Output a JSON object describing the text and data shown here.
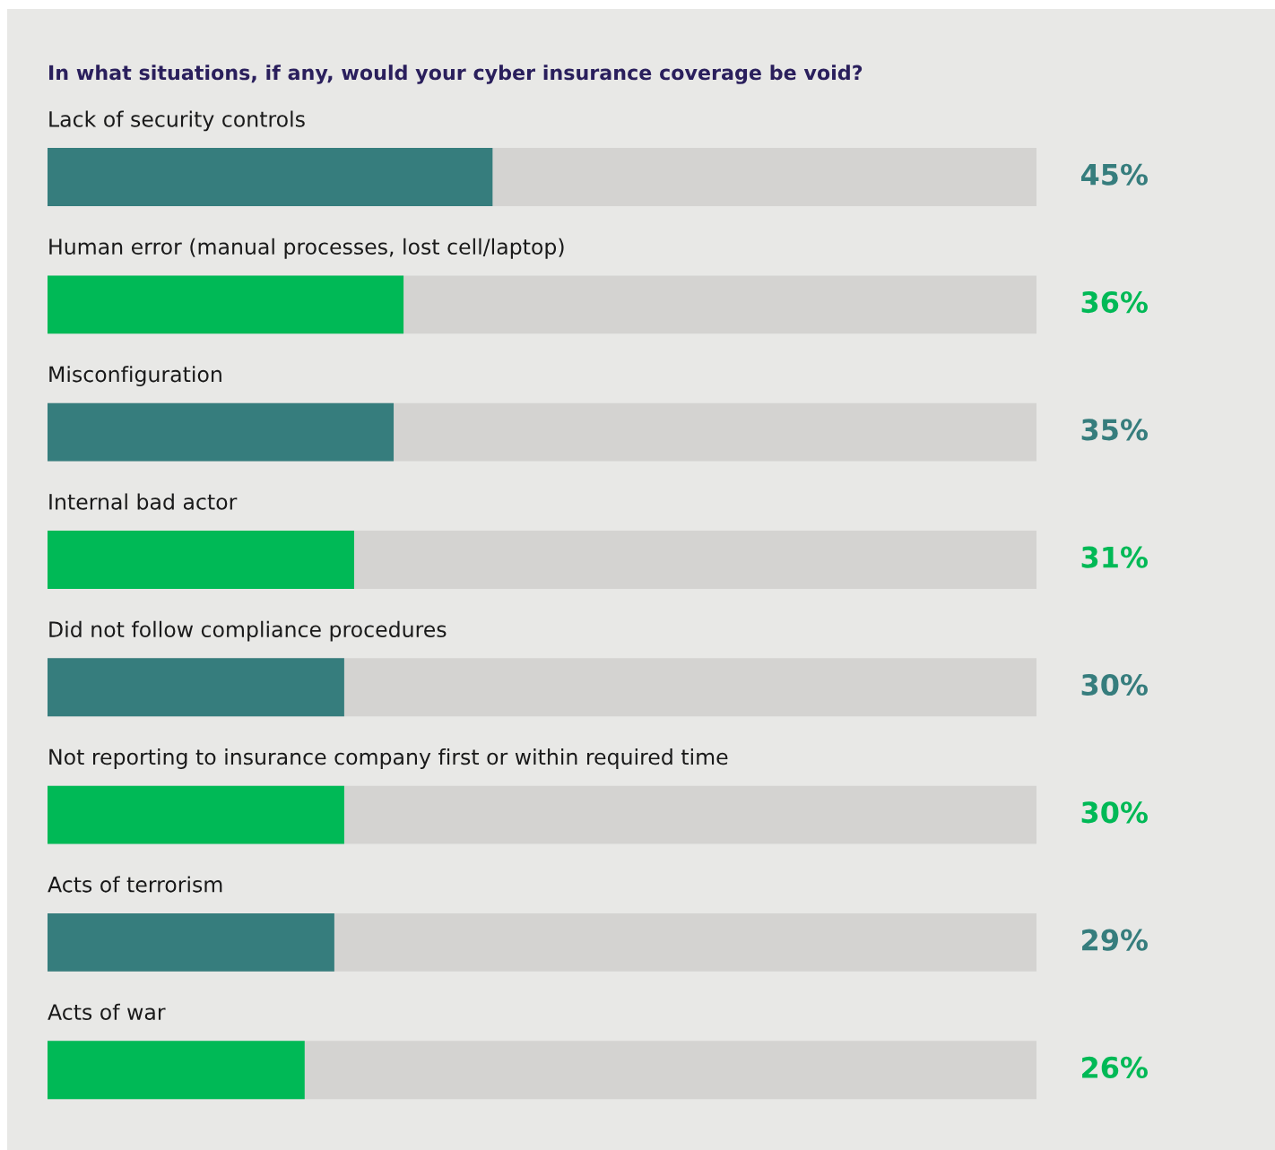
{
  "chart_data": {
    "type": "bar",
    "orientation": "horizontal",
    "title": "In what situations, if any, would your cyber insurance coverage be void?",
    "categories": [
      "Lack of security controls",
      "Human error (manual processes, lost cell/laptop)",
      "Misconfiguration",
      "Internal bad actor",
      "Did not follow compliance procedures",
      "Not reporting to insurance company first or within required time",
      "Acts of terrorism",
      "Acts of war"
    ],
    "values": [
      45,
      36,
      35,
      31,
      30,
      30,
      29,
      26
    ],
    "colors": [
      "#367d7d",
      "#00b956",
      "#367d7d",
      "#00b956",
      "#367d7d",
      "#00b956",
      "#367d7d",
      "#00b956"
    ],
    "value_labels": [
      "45%",
      "36%",
      "35%",
      "31%",
      "30%",
      "30%",
      "29%",
      "26%"
    ],
    "xlim": [
      0,
      100
    ]
  }
}
